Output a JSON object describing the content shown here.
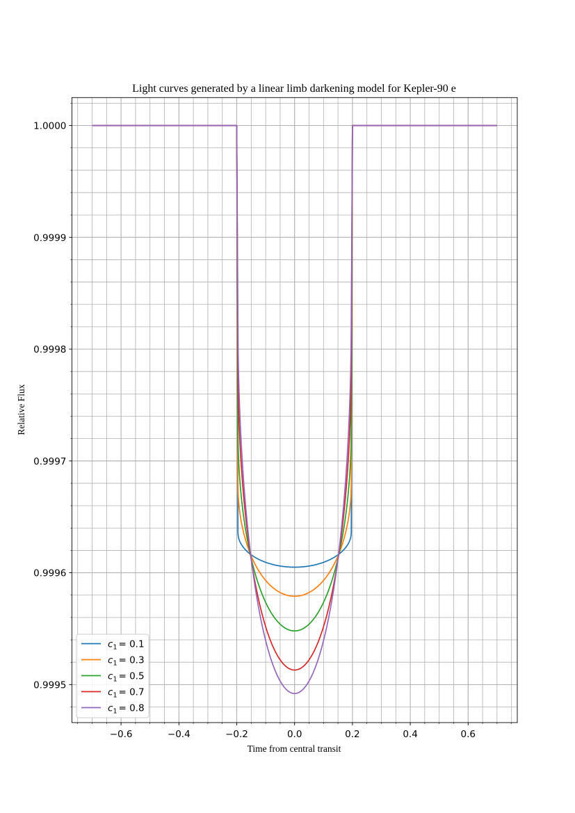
{
  "chart_data": {
    "type": "line",
    "title": "Light curves generated by a linear limb darkening model for Kepler-90 e",
    "xlabel": "Time from central transit",
    "ylabel": "Relative Flux",
    "xlim": [
      -0.77,
      0.77
    ],
    "ylim": [
      0.999466,
      1.000025
    ],
    "xticks": [
      -0.6,
      -0.4,
      -0.2,
      0.0,
      0.2,
      0.4,
      0.6
    ],
    "xtick_labels": [
      "−0.6",
      "−0.4",
      "−0.2",
      "0.0",
      "0.2",
      "0.4",
      "0.6"
    ],
    "yticks": [
      0.9995,
      0.9996,
      0.9997,
      0.9998,
      0.9999,
      1.0
    ],
    "ytick_labels": [
      "0.9995",
      "0.9996",
      "0.9997",
      "0.9998",
      "0.9999",
      "1.0000"
    ],
    "grid": true,
    "minor_grid": true,
    "legend_position": "lower-left",
    "time_range": [
      -0.7,
      0.7
    ],
    "transit": {
      "ingress_start": -0.2,
      "full_start": -0.196,
      "full_end": 0.196,
      "egress_end": 0.2
    },
    "series": [
      {
        "name": "c1 = 0.1",
        "legend_var": "c",
        "legend_sub": "1",
        "legend_value": "= 0.1",
        "c1": 0.1,
        "color": "#1f77b4",
        "center_flux": 0.999605,
        "edge_flux": 0.999636
      },
      {
        "name": "c1 = 0.3",
        "legend_var": "c",
        "legend_sub": "1",
        "legend_value": "= 0.3",
        "c1": 0.3,
        "color": "#ff7f0e",
        "center_flux": 0.999579,
        "edge_flux": 0.99968
      },
      {
        "name": "c1 = 0.5",
        "legend_var": "c",
        "legend_sub": "1",
        "legend_value": "= 0.5",
        "c1": 0.5,
        "color": "#2ca02c",
        "center_flux": 0.999548,
        "edge_flux": 0.99973
      },
      {
        "name": "c1 = 0.7",
        "legend_var": "c",
        "legend_sub": "1",
        "legend_value": "= 0.7",
        "c1": 0.7,
        "color": "#d62728",
        "center_flux": 0.999513,
        "edge_flux": 0.99979
      },
      {
        "name": "c1 = 0.8",
        "legend_var": "c",
        "legend_sub": "1",
        "legend_value": "= 0.8",
        "c1": 0.8,
        "color": "#9467bd",
        "center_flux": 0.999492,
        "edge_flux": 0.99983
      }
    ]
  }
}
